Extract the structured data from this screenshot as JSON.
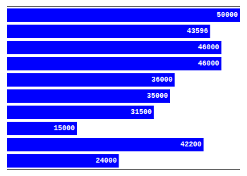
{
  "chart_data": {
    "type": "bar",
    "orientation": "horizontal",
    "categories": [
      null,
      null,
      null,
      null,
      null,
      null,
      null,
      null,
      null,
      null
    ],
    "values": [
      50000,
      43596,
      46000,
      46000,
      36000,
      35000,
      31500,
      15000,
      42200,
      24000
    ],
    "color": "#0000ff",
    "xlim": [
      0,
      50000
    ],
    "data_labels": true,
    "tick_labels": false,
    "grid": false
  }
}
